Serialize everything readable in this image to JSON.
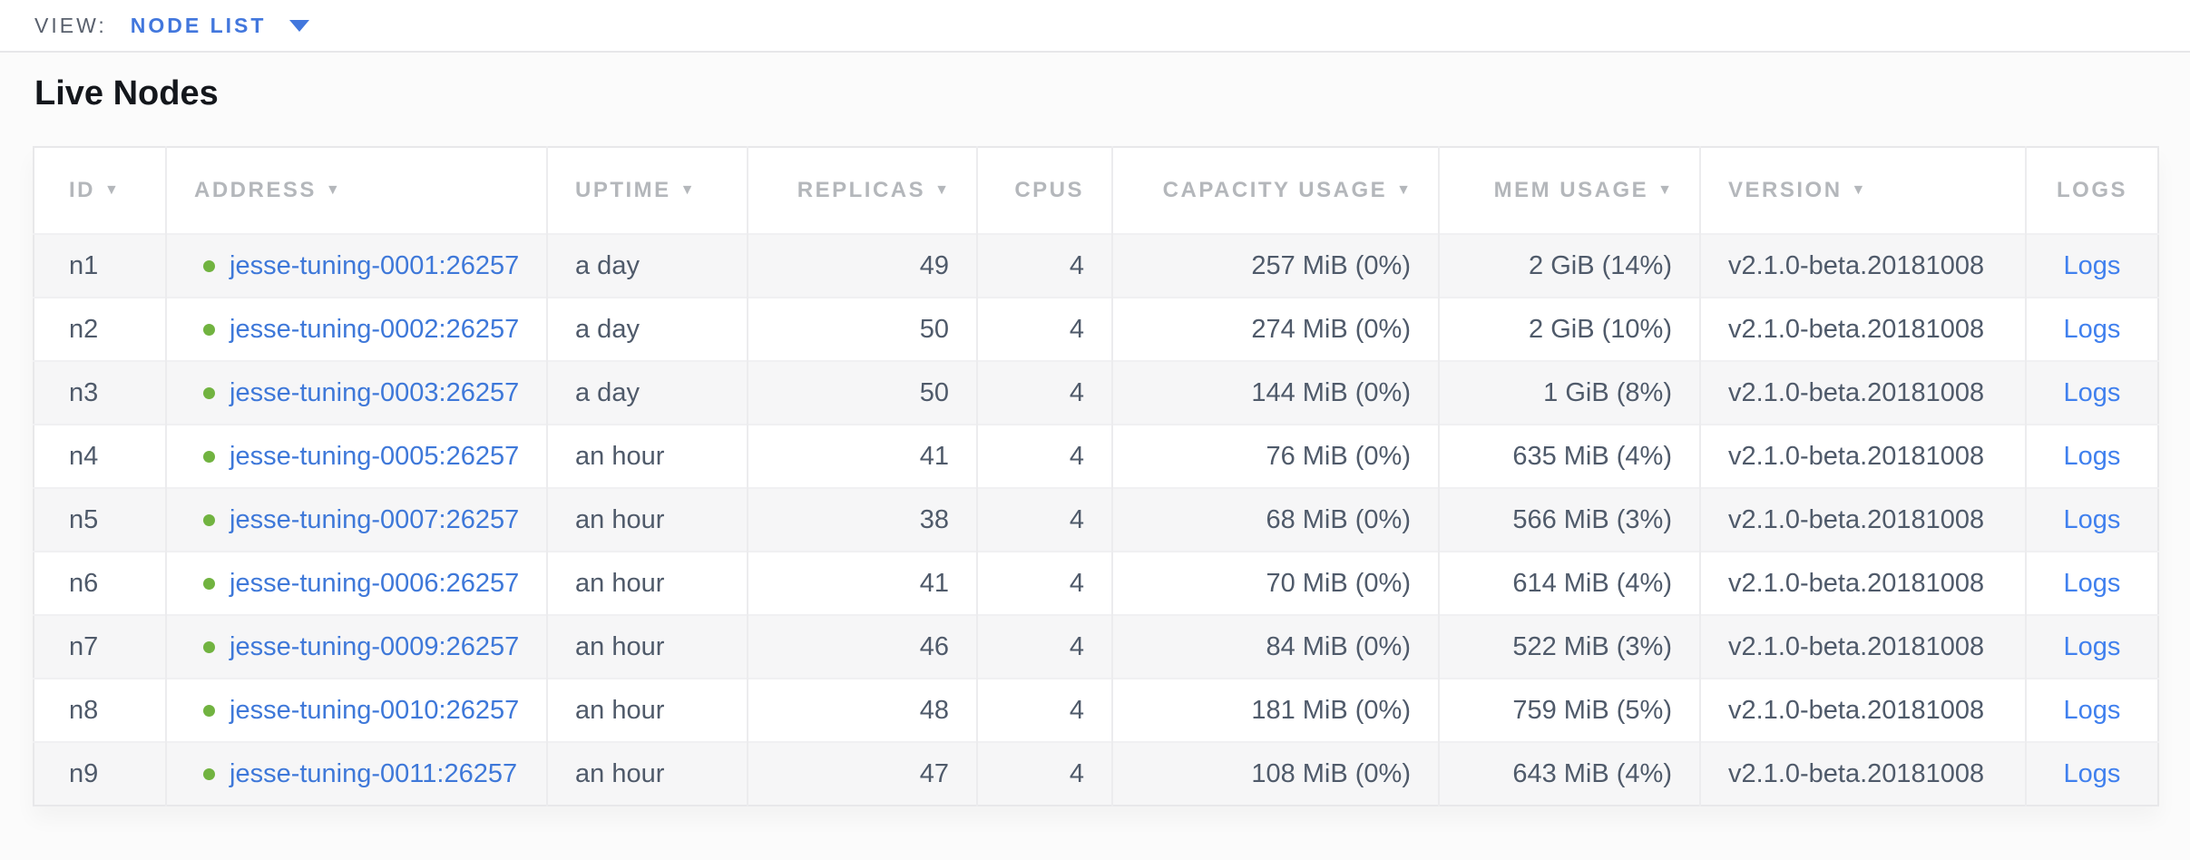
{
  "view_bar": {
    "label": "VIEW:",
    "selected": "NODE LIST",
    "dropdown_icon": "caret-down-icon"
  },
  "page": {
    "title": "Live Nodes"
  },
  "glyphs": {
    "sort_caret": "▼"
  },
  "icons": {
    "sort": "caret-down-icon",
    "node_status": "green-dot-icon"
  },
  "colors": {
    "accent_blue": "#4277dd",
    "address_link_blue": "#3e78d9",
    "logs_link_blue": "#4080ee",
    "live_green": "#71b340",
    "header_gray": "#b4b7bb",
    "body_text_slate": "#4f5a6a"
  },
  "table": {
    "columns": [
      {
        "key": "id",
        "label": "ID",
        "sortable": true,
        "align": "left"
      },
      {
        "key": "address",
        "label": "ADDRESS",
        "sortable": true,
        "align": "left"
      },
      {
        "key": "uptime",
        "label": "UPTIME",
        "sortable": true,
        "align": "left"
      },
      {
        "key": "replicas",
        "label": "REPLICAS",
        "sortable": true,
        "align": "right"
      },
      {
        "key": "cpus",
        "label": "CPUS",
        "sortable": false,
        "align": "right"
      },
      {
        "key": "capacity",
        "label": "CAPACITY USAGE",
        "sortable": true,
        "align": "right"
      },
      {
        "key": "mem",
        "label": "MEM USAGE",
        "sortable": true,
        "align": "right"
      },
      {
        "key": "version",
        "label": "VERSION",
        "sortable": true,
        "align": "left"
      },
      {
        "key": "logs",
        "label": "LOGS",
        "sortable": false,
        "align": "center"
      }
    ],
    "rows": [
      {
        "id": "n1",
        "status": "live",
        "address": "jesse-tuning-0001:26257",
        "uptime": "a day",
        "replicas": "49",
        "cpus": "4",
        "capacity": "257 MiB (0%)",
        "mem": "2 GiB (14%)",
        "version": "v2.1.0-beta.20181008",
        "logs": "Logs"
      },
      {
        "id": "n2",
        "status": "live",
        "address": "jesse-tuning-0002:26257",
        "uptime": "a day",
        "replicas": "50",
        "cpus": "4",
        "capacity": "274 MiB (0%)",
        "mem": "2 GiB (10%)",
        "version": "v2.1.0-beta.20181008",
        "logs": "Logs"
      },
      {
        "id": "n3",
        "status": "live",
        "address": "jesse-tuning-0003:26257",
        "uptime": "a day",
        "replicas": "50",
        "cpus": "4",
        "capacity": "144 MiB (0%)",
        "mem": "1 GiB (8%)",
        "version": "v2.1.0-beta.20181008",
        "logs": "Logs"
      },
      {
        "id": "n4",
        "status": "live",
        "address": "jesse-tuning-0005:26257",
        "uptime": "an hour",
        "replicas": "41",
        "cpus": "4",
        "capacity": "76 MiB (0%)",
        "mem": "635 MiB (4%)",
        "version": "v2.1.0-beta.20181008",
        "logs": "Logs"
      },
      {
        "id": "n5",
        "status": "live",
        "address": "jesse-tuning-0007:26257",
        "uptime": "an hour",
        "replicas": "38",
        "cpus": "4",
        "capacity": "68 MiB (0%)",
        "mem": "566 MiB (3%)",
        "version": "v2.1.0-beta.20181008",
        "logs": "Logs"
      },
      {
        "id": "n6",
        "status": "live",
        "address": "jesse-tuning-0006:26257",
        "uptime": "an hour",
        "replicas": "41",
        "cpus": "4",
        "capacity": "70 MiB (0%)",
        "mem": "614 MiB (4%)",
        "version": "v2.1.0-beta.20181008",
        "logs": "Logs"
      },
      {
        "id": "n7",
        "status": "live",
        "address": "jesse-tuning-0009:26257",
        "uptime": "an hour",
        "replicas": "46",
        "cpus": "4",
        "capacity": "84 MiB (0%)",
        "mem": "522 MiB (3%)",
        "version": "v2.1.0-beta.20181008",
        "logs": "Logs"
      },
      {
        "id": "n8",
        "status": "live",
        "address": "jesse-tuning-0010:26257",
        "uptime": "an hour",
        "replicas": "48",
        "cpus": "4",
        "capacity": "181 MiB (0%)",
        "mem": "759 MiB (5%)",
        "version": "v2.1.0-beta.20181008",
        "logs": "Logs"
      },
      {
        "id": "n9",
        "status": "live",
        "address": "jesse-tuning-0011:26257",
        "uptime": "an hour",
        "replicas": "47",
        "cpus": "4",
        "capacity": "108 MiB (0%)",
        "mem": "643 MiB (4%)",
        "version": "v2.1.0-beta.20181008",
        "logs": "Logs"
      }
    ]
  }
}
